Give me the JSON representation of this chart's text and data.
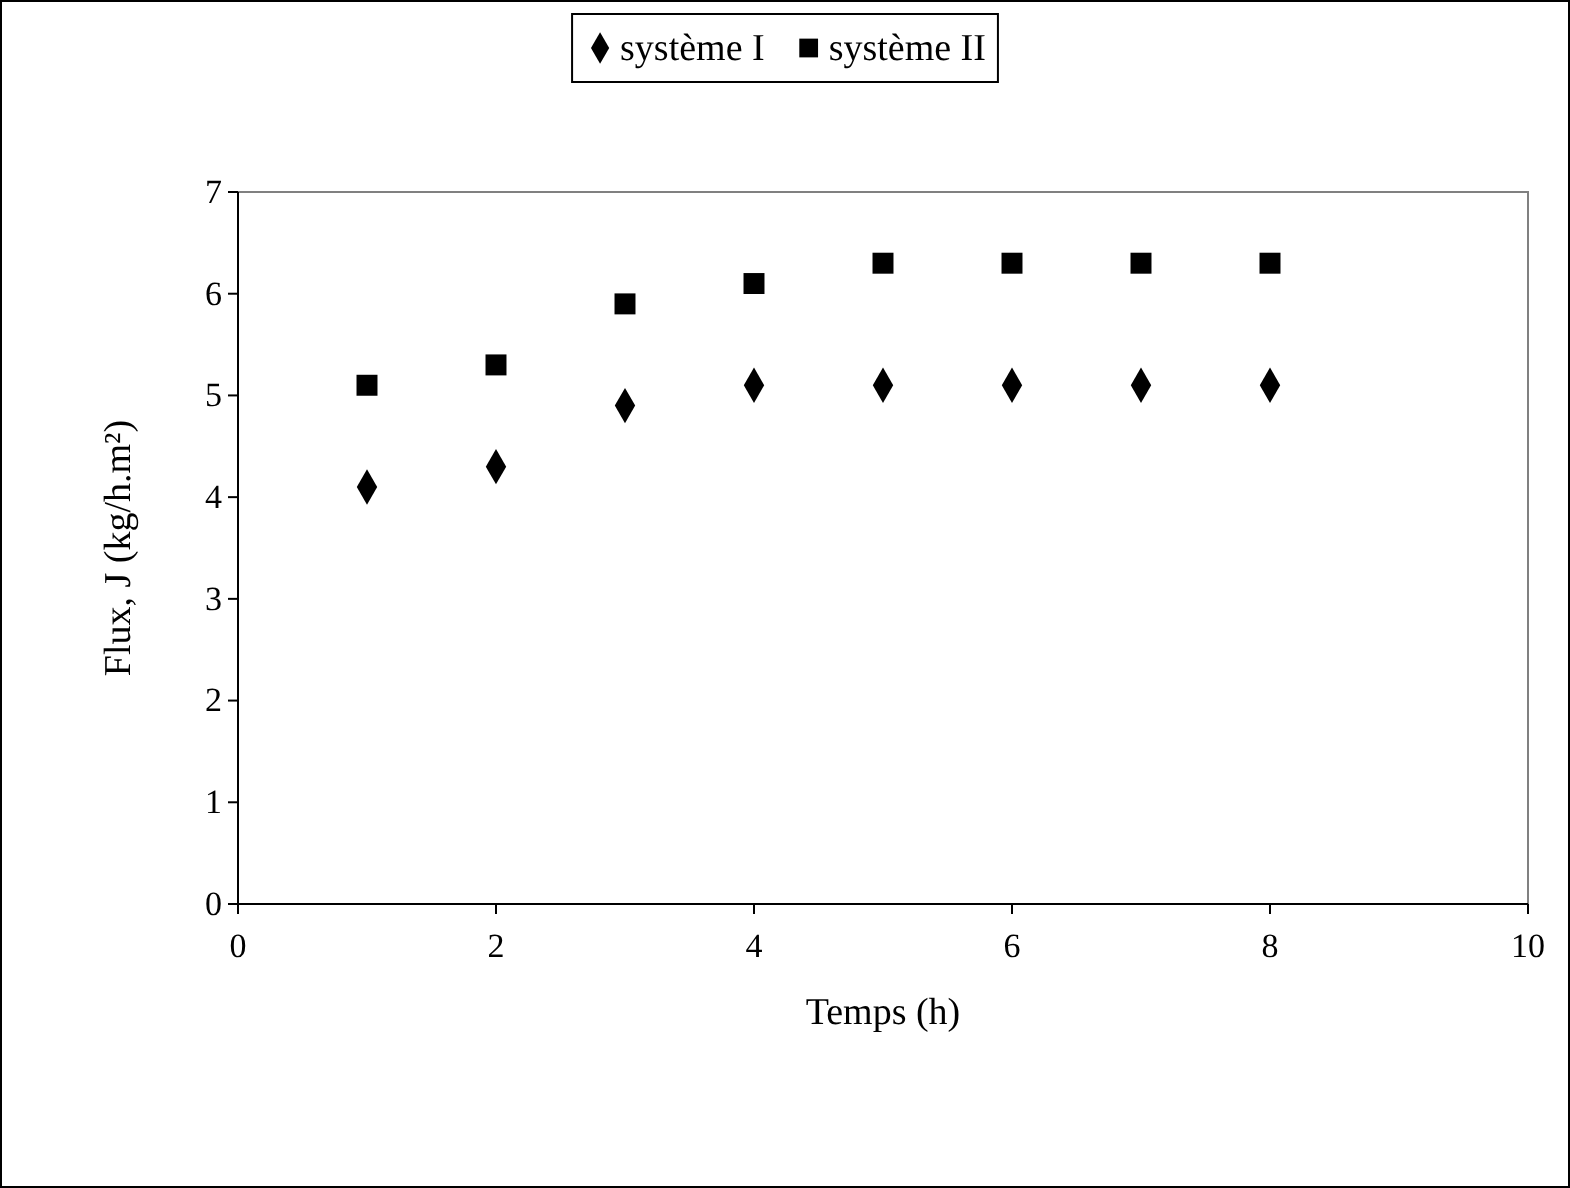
{
  "chart_data": {
    "type": "scatter",
    "xlabel": "Temps (h)",
    "ylabel": "Flux, J (kg/h.m²)",
    "x": [
      1,
      2,
      3,
      4,
      5,
      6,
      7,
      8
    ],
    "xlim": [
      0,
      10
    ],
    "xticks": [
      0,
      2,
      4,
      6,
      8,
      10
    ],
    "ylim": [
      0,
      7
    ],
    "yticks": [
      0,
      1,
      2,
      3,
      4,
      5,
      6,
      7
    ],
    "grid": false,
    "legend": "top",
    "series": [
      {
        "name": "système I",
        "color": "#000000",
        "marker": "diamond",
        "values": [
          4.1,
          4.3,
          4.9,
          5.1,
          5.1,
          5.1,
          5.1,
          5.1
        ]
      },
      {
        "name": "système II",
        "color": "#000000",
        "marker": "square",
        "values": [
          5.1,
          5.3,
          5.9,
          6.1,
          6.3,
          6.3,
          6.3,
          6.3
        ]
      }
    ]
  }
}
